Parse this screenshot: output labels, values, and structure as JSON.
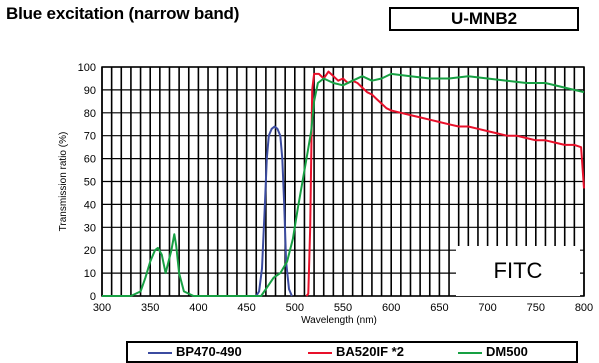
{
  "header": {
    "title": "Blue excitation (narrow band)",
    "code": "U-MNB2"
  },
  "overlay_label": "FITC",
  "chart_data": {
    "type": "line",
    "xlabel": "Wavelength (nm)",
    "ylabel": "Transmission ratio (%)",
    "xlim": [
      300,
      800
    ],
    "ylim": [
      0,
      100
    ],
    "xticks": [
      300,
      350,
      400,
      450,
      500,
      550,
      600,
      650,
      700,
      750,
      800
    ],
    "yticks": [
      0,
      10,
      20,
      30,
      40,
      50,
      60,
      70,
      80,
      90,
      100
    ],
    "grid": true,
    "legend_position": "bottom",
    "series": [
      {
        "name": "BP470-490",
        "color": "#3b4ba0",
        "points": [
          [
            460,
            0
          ],
          [
            463,
            2
          ],
          [
            466,
            12
          ],
          [
            469,
            40
          ],
          [
            471,
            60
          ],
          [
            473,
            70
          ],
          [
            476,
            73
          ],
          [
            479,
            74
          ],
          [
            482,
            73
          ],
          [
            485,
            70
          ],
          [
            487,
            60
          ],
          [
            489,
            40
          ],
          [
            491,
            15
          ],
          [
            494,
            3
          ],
          [
            497,
            0
          ]
        ]
      },
      {
        "name": "BA520IF *2",
        "color": "#e8102a",
        "points": [
          [
            512,
            0
          ],
          [
            514,
            1
          ],
          [
            516,
            30
          ],
          [
            518,
            90
          ],
          [
            520,
            97
          ],
          [
            525,
            97
          ],
          [
            530,
            95
          ],
          [
            535,
            98
          ],
          [
            540,
            96
          ],
          [
            545,
            94
          ],
          [
            550,
            95
          ],
          [
            555,
            93
          ],
          [
            560,
            94
          ],
          [
            565,
            93
          ],
          [
            570,
            91
          ],
          [
            575,
            89
          ],
          [
            580,
            88
          ],
          [
            585,
            86
          ],
          [
            590,
            84
          ],
          [
            595,
            82
          ],
          [
            600,
            81
          ],
          [
            610,
            80
          ],
          [
            620,
            79
          ],
          [
            630,
            78
          ],
          [
            640,
            77
          ],
          [
            650,
            76
          ],
          [
            660,
            75
          ],
          [
            670,
            74
          ],
          [
            680,
            74
          ],
          [
            690,
            73
          ],
          [
            700,
            72
          ],
          [
            710,
            71
          ],
          [
            720,
            70
          ],
          [
            730,
            70
          ],
          [
            740,
            69
          ],
          [
            750,
            68
          ],
          [
            760,
            68
          ],
          [
            770,
            67
          ],
          [
            780,
            66
          ],
          [
            790,
            66
          ],
          [
            797,
            65
          ],
          [
            800,
            47
          ]
        ]
      },
      {
        "name": "DM500",
        "color": "#17a043",
        "points": [
          [
            300,
            0
          ],
          [
            330,
            0
          ],
          [
            340,
            2
          ],
          [
            345,
            8
          ],
          [
            350,
            15
          ],
          [
            355,
            20
          ],
          [
            358,
            21
          ],
          [
            362,
            18
          ],
          [
            366,
            10
          ],
          [
            369,
            15
          ],
          [
            372,
            20
          ],
          [
            375,
            27
          ],
          [
            377,
            22
          ],
          [
            380,
            10
          ],
          [
            385,
            2
          ],
          [
            395,
            0
          ],
          [
            440,
            0
          ],
          [
            465,
            0
          ],
          [
            470,
            3
          ],
          [
            478,
            8
          ],
          [
            485,
            10
          ],
          [
            492,
            15
          ],
          [
            498,
            25
          ],
          [
            503,
            38
          ],
          [
            508,
            50
          ],
          [
            513,
            62
          ],
          [
            517,
            72
          ],
          [
            520,
            85
          ],
          [
            524,
            93
          ],
          [
            530,
            95
          ],
          [
            540,
            93
          ],
          [
            550,
            92
          ],
          [
            560,
            94
          ],
          [
            570,
            96
          ],
          [
            580,
            94
          ],
          [
            590,
            95
          ],
          [
            600,
            97
          ],
          [
            620,
            96
          ],
          [
            640,
            95
          ],
          [
            660,
            95
          ],
          [
            680,
            96
          ],
          [
            700,
            95
          ],
          [
            720,
            94
          ],
          [
            740,
            93
          ],
          [
            760,
            93
          ],
          [
            780,
            91
          ],
          [
            800,
            89
          ]
        ]
      }
    ]
  }
}
